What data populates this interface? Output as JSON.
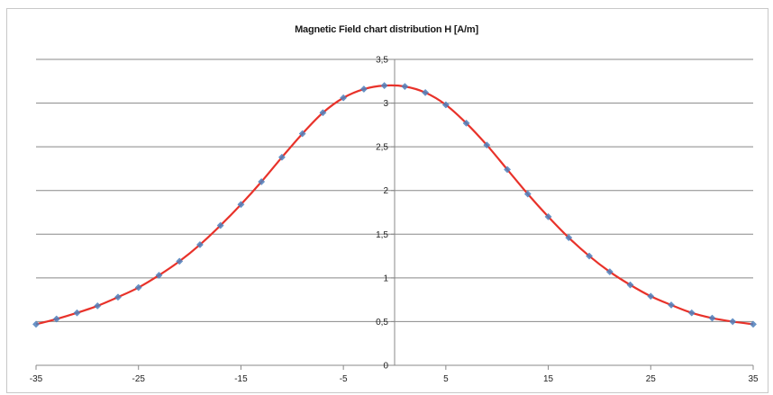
{
  "chart_data": {
    "type": "line",
    "title": "Magnetic Field chart distribution H [A/m]",
    "xlabel": "",
    "ylabel": "",
    "xlim": [
      -35,
      35
    ],
    "ylim": [
      0,
      3.5
    ],
    "x_ticks": [
      "-35",
      "-25",
      "-15",
      "-5",
      "5",
      "15",
      "25",
      "35"
    ],
    "x_tick_values": [
      -35,
      -25,
      -15,
      -5,
      5,
      15,
      25,
      35
    ],
    "y_ticks": [
      "0",
      "0,5",
      "1",
      "1,5",
      "2",
      "2,5",
      "3",
      "3,5"
    ],
    "y_tick_values": [
      0,
      0.5,
      1,
      1.5,
      2,
      2.5,
      3,
      3.5
    ],
    "grid": "horizontal",
    "legend": "none",
    "series": [
      {
        "marker": "diamond",
        "line_color": "#e8322a",
        "marker_color": "#4f81bd",
        "x": [
          -35,
          -33,
          -31,
          -29,
          -27,
          -25,
          -23,
          -21,
          -19,
          -17,
          -15,
          -13,
          -11,
          -9,
          -7,
          -5,
          -3,
          -1,
          1,
          3,
          5,
          7,
          9,
          11,
          13,
          15,
          17,
          19,
          21,
          23,
          25,
          27,
          29,
          31,
          33,
          35
        ],
        "y": [
          0.47,
          0.53,
          0.6,
          0.68,
          0.78,
          0.89,
          1.03,
          1.19,
          1.38,
          1.6,
          1.84,
          2.1,
          2.38,
          2.65,
          2.89,
          3.06,
          3.16,
          3.2,
          3.19,
          3.12,
          2.98,
          2.77,
          2.52,
          2.24,
          1.96,
          1.7,
          1.46,
          1.25,
          1.07,
          0.92,
          0.79,
          0.69,
          0.6,
          0.54,
          0.5,
          0.47
        ]
      }
    ],
    "colors": {
      "gridline": "#888888",
      "axis": "#888888",
      "frame": "#c8c8c8"
    }
  }
}
